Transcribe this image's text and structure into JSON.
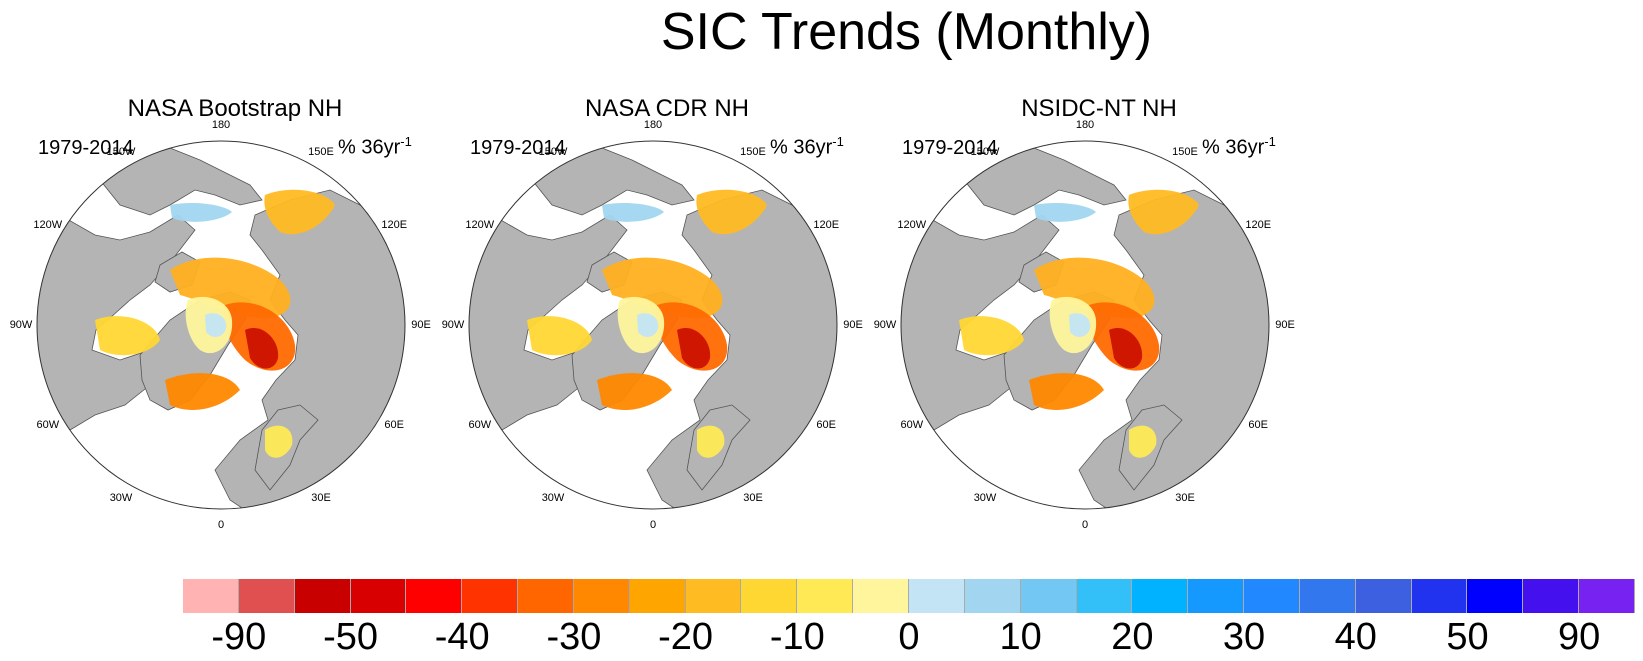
{
  "title": "SIC Trends (Monthly)",
  "panels": [
    {
      "title": "NASA Bootstrap NH",
      "period": "1979-2014",
      "units": "% 36yr",
      "units_sup": "-1"
    },
    {
      "title": "NASA CDR NH",
      "period": "1979-2014",
      "units": "% 36yr",
      "units_sup": "-1"
    },
    {
      "title": "NSIDC-NT NH",
      "period": "1979-2014",
      "units": "% 36yr",
      "units_sup": "-1"
    }
  ],
  "longitude_labels": [
    "180",
    "150E",
    "120E",
    "90E",
    "60E",
    "30E",
    "0",
    "30W",
    "60W",
    "90W",
    "120W",
    "150W"
  ],
  "colorbar": {
    "colors": [
      "#ffb3b3",
      "#e05050",
      "#c80000",
      "#d80000",
      "#ff0000",
      "#ff3300",
      "#ff6600",
      "#ff8800",
      "#ffa500",
      "#ffbb22",
      "#ffd733",
      "#ffea55",
      "#fff59d",
      "#c2e4f5",
      "#a2d6f0",
      "#73c8f3",
      "#33bff7",
      "#00b2ff",
      "#1599ff",
      "#2288ff",
      "#3377ee",
      "#3d60e0",
      "#2233f0",
      "#0000ff",
      "#4411ee",
      "#7722f0"
    ],
    "tick_labels": [
      "-90",
      "-50",
      "-40",
      "-30",
      "-20",
      "-10",
      "0",
      "10",
      "20",
      "30",
      "40",
      "50",
      "90"
    ]
  },
  "colors": {
    "land": "#b4b4b4",
    "ocean": "#ffffff",
    "coast": "#555555"
  }
}
